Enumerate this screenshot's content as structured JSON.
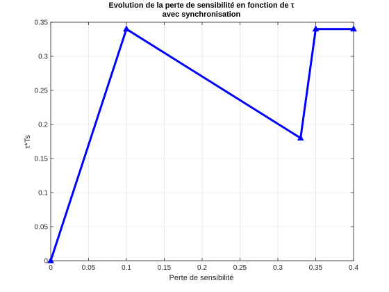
{
  "chart_data": {
    "type": "line",
    "title_line1": "Evolution de la perte de sensibilité en fonction de τ",
    "title_line2": "avec synchronisation",
    "xlabel": "Perte de sensibilité",
    "ylabel": "τ*Ts",
    "xlim": [
      0,
      0.4
    ],
    "ylim": [
      0,
      0.35
    ],
    "xticks": [
      "0",
      "0.05",
      "0.1",
      "0.15",
      "0.2",
      "0.25",
      "0.3",
      "0.35",
      "0.4"
    ],
    "yticks": [
      "0",
      "0.05",
      "0.1",
      "0.15",
      "0.2",
      "0.25",
      "0.3",
      "0.35"
    ],
    "grid": true,
    "series": [
      {
        "color": "#0000ff",
        "marker": "triangle",
        "x": [
          0,
          0.1,
          0.33,
          0.35,
          0.4
        ],
        "y": [
          0,
          0.34,
          0.18,
          0.34,
          0.34
        ]
      }
    ]
  }
}
